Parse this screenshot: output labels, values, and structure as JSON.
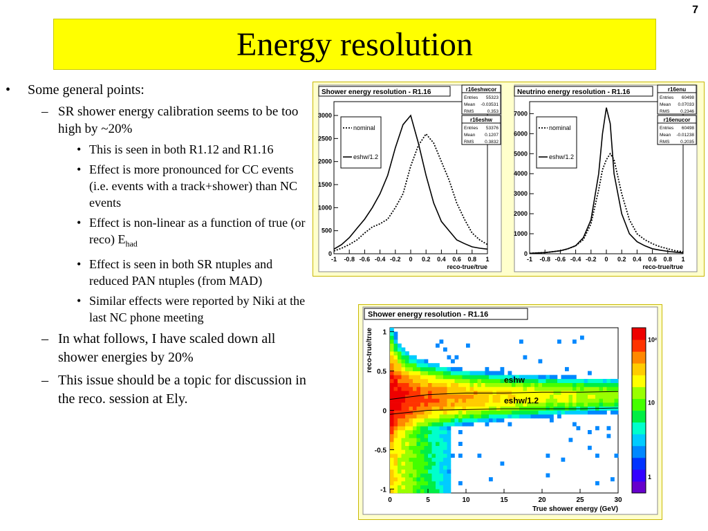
{
  "slide_number": "7",
  "title": "Energy resolution",
  "bullets": {
    "top": "Some general points:",
    "sub1": "SR shower energy calibration seems to be too high by ~20%",
    "items": [
      "This is seen in both R1.12 and R1.16",
      "Effect is more pronounced for CC events (i.e. events with a track+shower) than NC events",
      "Effect is non-linear as a function of true (or reco) E",
      "Effect is seen in both SR ntuples and reduced PAN ntuples (from MAD)",
      "Similar effects were reported by Niki at the last NC phone meeting"
    ],
    "item3_sub": "had",
    "sub2": "In what follows, I have scaled down all shower energies by 20%",
    "sub3": "This issue should be a topic for discussion in the reco. session at Ely."
  },
  "colors": {
    "title_bg": "#ffff00",
    "nominal": "#000000",
    "scaled": "#000000"
  },
  "chart_data": [
    {
      "type": "line",
      "title": "Shower energy resolution - R1.16",
      "xlabel": "reco-true/true",
      "ylabel": "",
      "xlim": [
        -1,
        1
      ],
      "ylim": [
        0,
        3300
      ],
      "xticks": [
        "-1",
        "-0.8",
        "-0.6",
        "-0.4",
        "-0.2",
        "0",
        "0.2",
        "0.4",
        "0.6",
        "0.8",
        "1"
      ],
      "yticks": [
        "0",
        "500",
        "1000",
        "1500",
        "2000",
        "2500",
        "3000"
      ],
      "legend": [
        "nominal",
        "eshw/1.2"
      ],
      "x": [
        -1,
        -0.9,
        -0.8,
        -0.7,
        -0.6,
        -0.5,
        -0.4,
        -0.3,
        -0.2,
        -0.1,
        0,
        0.1,
        0.2,
        0.3,
        0.4,
        0.5,
        0.6,
        0.7,
        0.8,
        0.9,
        1
      ],
      "series": [
        {
          "name": "nominal",
          "style": "dotted",
          "values": [
            60,
            120,
            200,
            300,
            450,
            580,
            650,
            750,
            1000,
            1300,
            1900,
            2350,
            2600,
            2400,
            2000,
            1600,
            1100,
            750,
            450,
            300,
            200
          ]
        },
        {
          "name": "eshw/1.2",
          "style": "solid",
          "values": [
            100,
            200,
            350,
            550,
            750,
            1000,
            1300,
            1700,
            2300,
            2800,
            3000,
            2400,
            1700,
            1100,
            700,
            500,
            300,
            220,
            150,
            120,
            100
          ]
        }
      ],
      "stats": [
        {
          "name": "r16eshwcor",
          "rows": [
            [
              "Entries",
              "55323"
            ],
            [
              "Mean",
              "-0.03531"
            ],
            [
              "RMS",
              "0.353"
            ]
          ]
        },
        {
          "name": "r16eshw",
          "rows": [
            [
              "Entries",
              "53376"
            ],
            [
              "Mean",
              "0.1207"
            ],
            [
              "RMS",
              "0.3832"
            ]
          ]
        }
      ]
    },
    {
      "type": "line",
      "title": "Neutrino energy resolution - R1.16",
      "xlabel": "reco-true/true",
      "ylabel": "",
      "xlim": [
        -1,
        1
      ],
      "ylim": [
        0,
        7600
      ],
      "xticks": [
        "-1",
        "-0.8",
        "-0.6",
        "-0.4",
        "-0.2",
        "0",
        "0.2",
        "0.4",
        "0.6",
        "0.8",
        "1"
      ],
      "yticks": [
        "0",
        "1000",
        "2000",
        "3000",
        "4000",
        "5000",
        "6000",
        "7000"
      ],
      "legend": [
        "nominal",
        "eshw/1.2"
      ],
      "x": [
        -1,
        -0.9,
        -0.8,
        -0.7,
        -0.6,
        -0.5,
        -0.4,
        -0.3,
        -0.2,
        -0.1,
        -0.05,
        0,
        0.05,
        0.1,
        0.2,
        0.3,
        0.4,
        0.5,
        0.6,
        0.7,
        0.8,
        0.9,
        1
      ],
      "series": [
        {
          "name": "nominal",
          "style": "dotted",
          "values": [
            20,
            40,
            60,
            100,
            150,
            250,
            400,
            700,
            1500,
            3200,
            4200,
            4700,
            5000,
            4700,
            3000,
            1700,
            1000,
            700,
            500,
            350,
            250,
            150,
            100
          ]
        },
        {
          "name": "eshw/1.2",
          "style": "solid",
          "values": [
            20,
            40,
            60,
            100,
            150,
            250,
            400,
            800,
            1700,
            4000,
            6000,
            7300,
            6500,
            4000,
            2000,
            1000,
            600,
            400,
            250,
            180,
            120,
            80,
            50
          ]
        }
      ],
      "stats": [
        {
          "name": "r16enu",
          "rows": [
            [
              "Entries",
              "60498"
            ],
            [
              "Mean",
              "0.07033"
            ],
            [
              "RMS",
              "0.2346"
            ]
          ]
        },
        {
          "name": "r16enucor",
          "rows": [
            [
              "Entries",
              "60498"
            ],
            [
              "Mean",
              "-0.01238"
            ],
            [
              "RMS",
              "0.2035"
            ]
          ]
        }
      ]
    },
    {
      "type": "heatmap",
      "title": "Shower energy resolution - R1.16",
      "xlabel": "True shower energy (GeV)",
      "ylabel": "reco-true/true",
      "xlim": [
        0,
        30
      ],
      "ylim": [
        -1.05,
        1.05
      ],
      "xticks": [
        "0",
        "5",
        "10",
        "15",
        "20",
        "25",
        "30"
      ],
      "yticks": [
        "-1",
        "-0.5",
        "0",
        "0.5",
        "1"
      ],
      "colorbar_ticks": [
        "1",
        "10",
        "10²"
      ],
      "log_color_scale": true,
      "annotations": [
        "eshw",
        "eshw/1.2"
      ],
      "profile_eshw": {
        "x": [
          0,
          5,
          10,
          15,
          20,
          25,
          30
        ],
        "y": [
          0.14,
          0.2,
          0.22,
          0.22,
          0.23,
          0.23,
          0.24
        ]
      },
      "profile_scaled": {
        "x": [
          0,
          5,
          10,
          15,
          20,
          25,
          30
        ],
        "y": [
          -0.05,
          0.0,
          0.01,
          0.02,
          0.02,
          0.02,
          0.03
        ]
      }
    }
  ]
}
